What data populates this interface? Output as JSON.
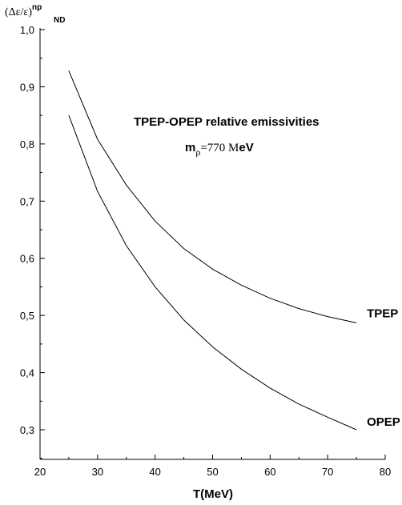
{
  "chart_data": {
    "type": "line",
    "title": "",
    "xlabel": "T(MeV)",
    "ylabel": {
      "main": "(Δε/ε)",
      "superscript": "np",
      "subscript": "ND"
    },
    "xlim": [
      20,
      80
    ],
    "ylim": [
      0.25,
      1.0
    ],
    "x_ticks": [
      20,
      30,
      40,
      50,
      60,
      70,
      80
    ],
    "x_tick_labels": [
      "20",
      "30",
      "40",
      "50",
      "60",
      "70",
      "80"
    ],
    "y_ticks": [
      0.3,
      0.4,
      0.5,
      0.6,
      0.7,
      0.8,
      0.9,
      1.0
    ],
    "y_tick_labels": [
      "0,3",
      "0,4",
      "0,5",
      "0,6",
      "0,7",
      "0,8",
      "0,9",
      "1,0"
    ],
    "grid": false,
    "legend": "none",
    "annotations": {
      "title": "TPEP-OPEP relative emissivities",
      "subtitle_m": "m",
      "subtitle_sub": "ρ",
      "subtitle_value": "=770 M",
      "subtitle_unit": "eV"
    },
    "series": [
      {
        "name": "TPEP",
        "x": [
          25,
          30,
          35,
          40,
          45,
          50,
          55,
          60,
          65,
          70,
          75
        ],
        "values": [
          0.928,
          0.808,
          0.728,
          0.665,
          0.617,
          0.581,
          0.553,
          0.53,
          0.512,
          0.498,
          0.487
        ]
      },
      {
        "name": "OPEP",
        "x": [
          25,
          30,
          35,
          40,
          45,
          50,
          55,
          60,
          65,
          70,
          75
        ],
        "values": [
          0.85,
          0.717,
          0.622,
          0.55,
          0.492,
          0.445,
          0.406,
          0.373,
          0.345,
          0.322,
          0.3
        ]
      }
    ]
  }
}
